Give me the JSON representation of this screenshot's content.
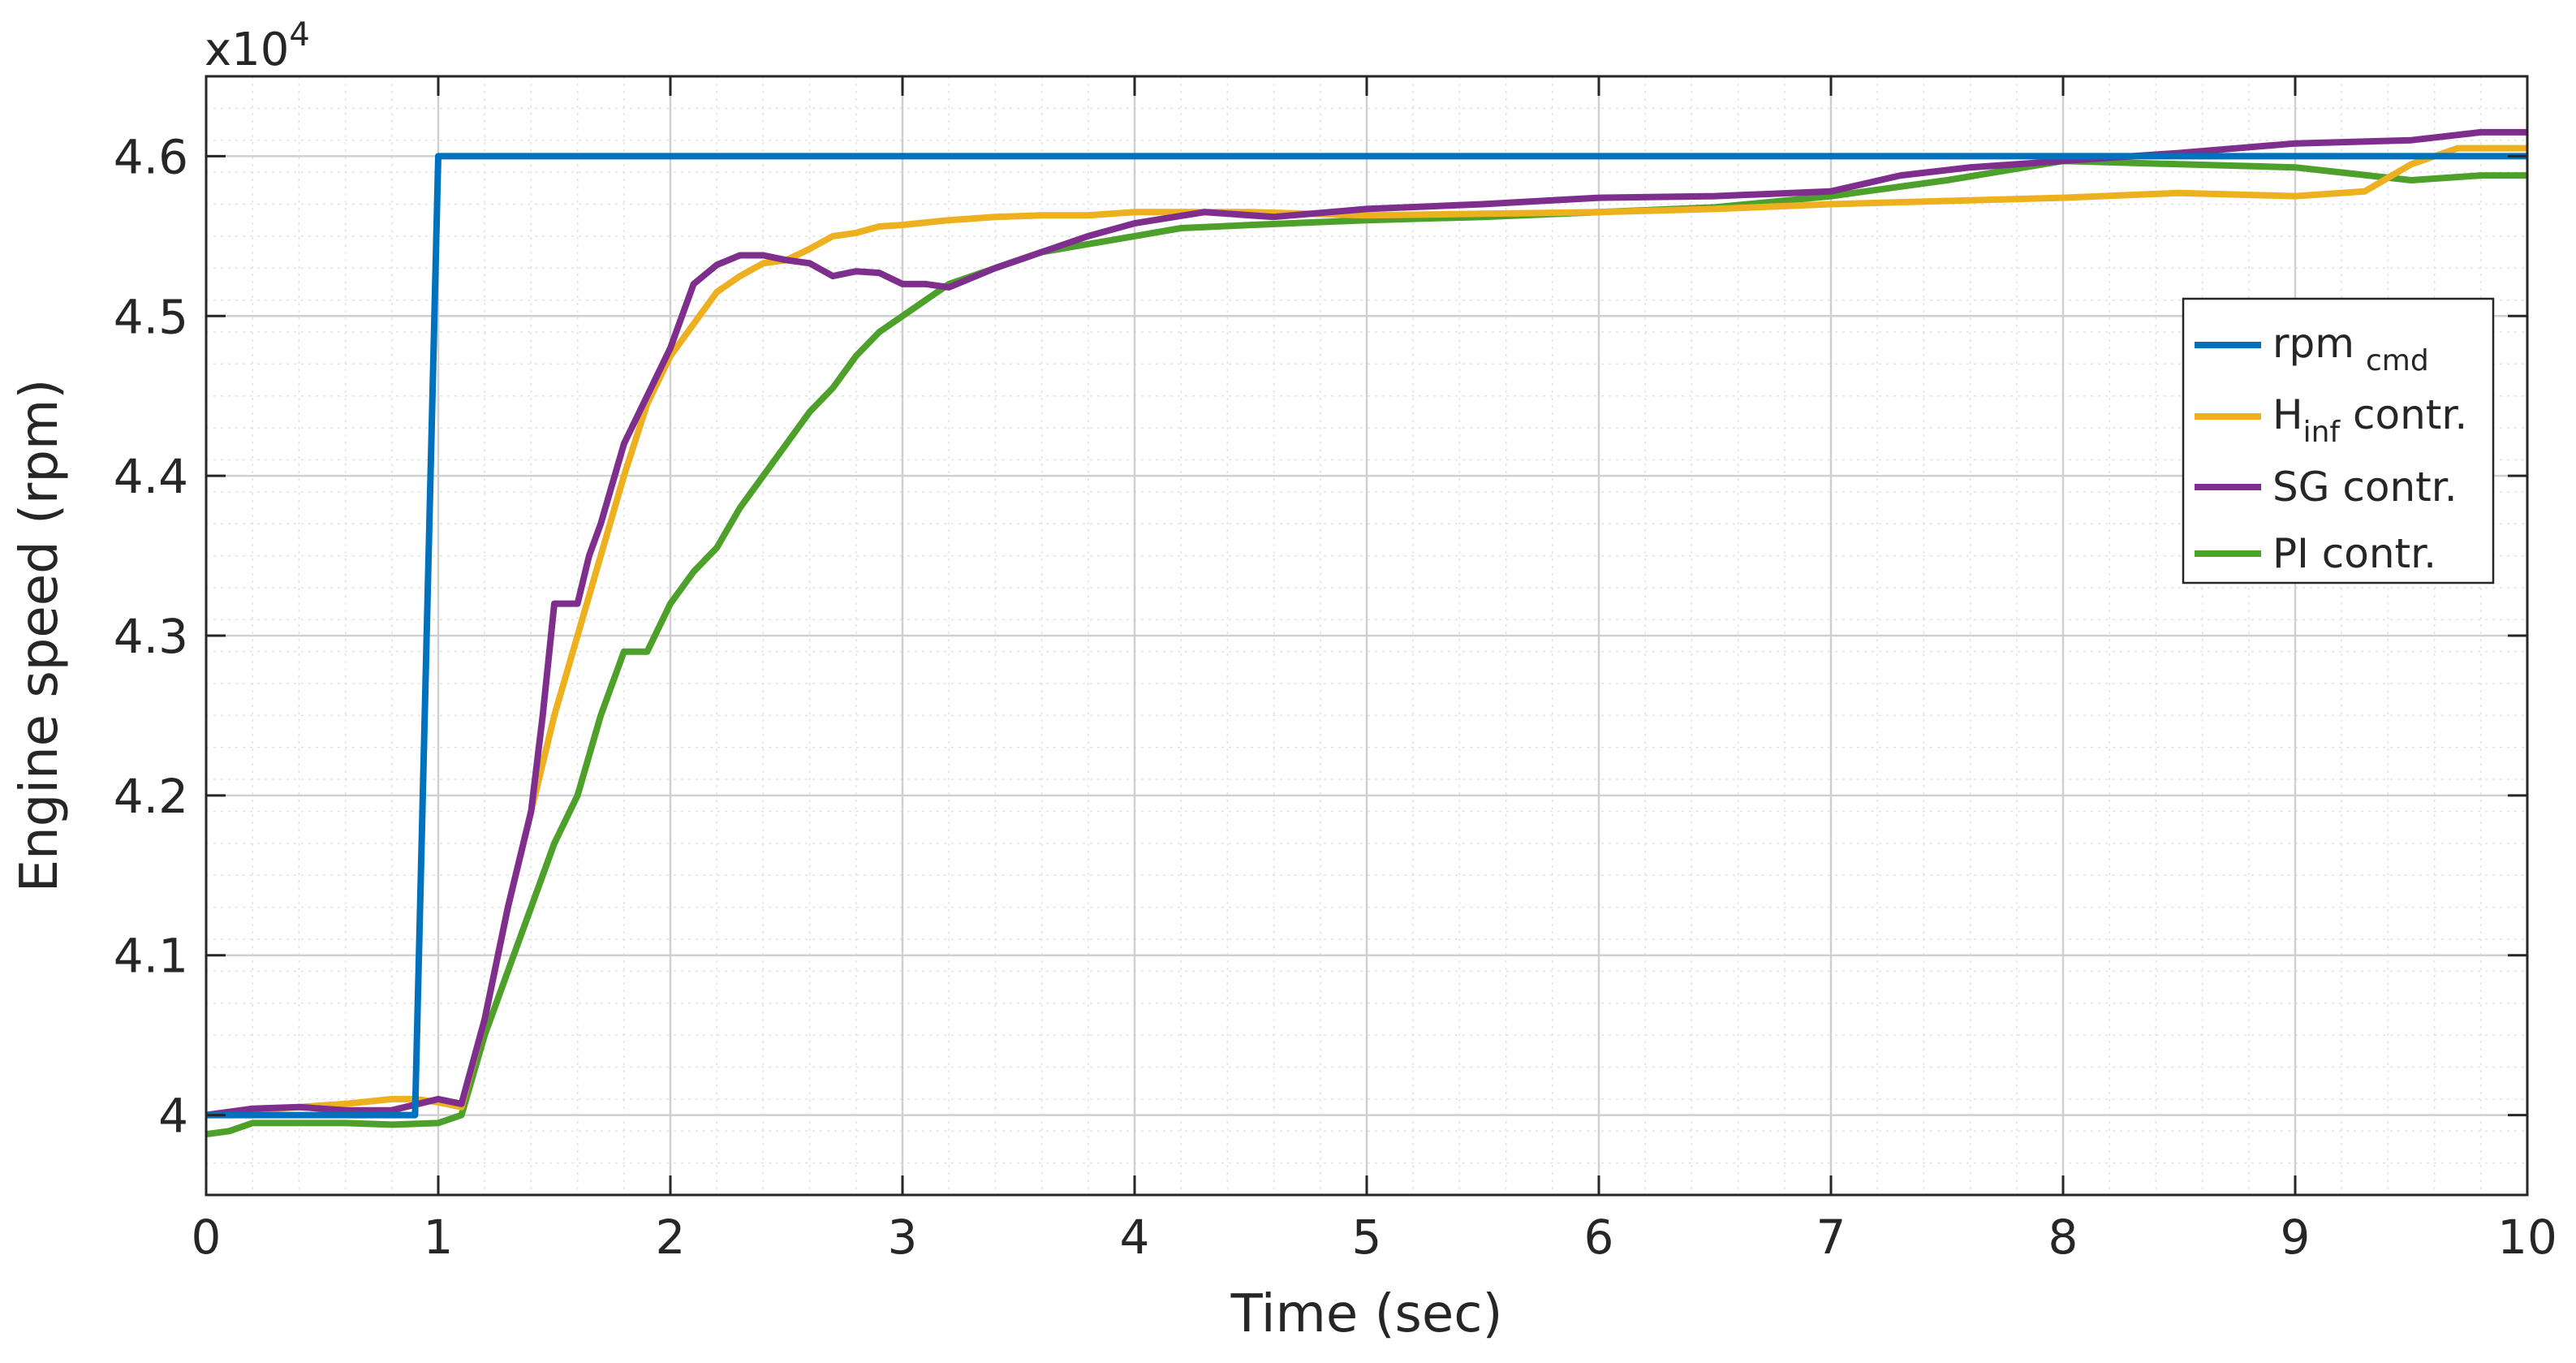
{
  "chart_data": {
    "type": "line",
    "xlabel": "Time (sec)",
    "ylabel": "Engine speed (rpm)",
    "y_multiplier": {
      "base": "x10",
      "exponent": "4"
    },
    "xlim": [
      0,
      10
    ],
    "ylim": [
      3.95,
      4.65
    ],
    "x_ticks": [
      0,
      1,
      2,
      3,
      4,
      5,
      6,
      7,
      8,
      9,
      10
    ],
    "x_tick_labels": [
      "0",
      "1",
      "2",
      "3",
      "4",
      "5",
      "6",
      "7",
      "8",
      "9",
      "10"
    ],
    "y_ticks": [
      4.0,
      4.1,
      4.2,
      4.3,
      4.4,
      4.5,
      4.6
    ],
    "y_tick_labels": [
      "4",
      "4.1",
      "4.2",
      "4.3",
      "4.4",
      "4.5",
      "4.6"
    ],
    "grid": {
      "major": true,
      "minor": true
    },
    "legend": {
      "placement": "right"
    },
    "series": [
      {
        "name": "rpm_cmd",
        "label_main": "rpm",
        "label_sub": "cmd",
        "label_suffix": "",
        "color": "#0072BD",
        "x": [
          0,
          0.9,
          0.9,
          1.0,
          1.0,
          10
        ],
        "y": [
          4.0,
          4.0,
          4.0,
          4.6,
          4.6,
          4.6
        ]
      },
      {
        "name": "H_inf contr.",
        "label_main": "H",
        "label_sub": "inf",
        "label_suffix": " contr.",
        "color": "#EDB120",
        "x": [
          0,
          0.2,
          0.4,
          0.6,
          0.8,
          0.9,
          1.0,
          1.1,
          1.2,
          1.3,
          1.4,
          1.5,
          1.6,
          1.7,
          1.8,
          1.9,
          2.0,
          2.1,
          2.2,
          2.3,
          2.4,
          2.5,
          2.6,
          2.7,
          2.8,
          2.9,
          3.0,
          3.2,
          3.4,
          3.6,
          3.8,
          4.0,
          4.2,
          4.5,
          5.0,
          5.5,
          6.0,
          6.5,
          7.0,
          7.5,
          8.0,
          8.5,
          9.0,
          9.3,
          9.5,
          9.7,
          10
        ],
        "y": [
          4.0,
          4.003,
          4.005,
          4.007,
          4.01,
          4.01,
          4.008,
          4.005,
          4.06,
          4.13,
          4.19,
          4.25,
          4.3,
          4.35,
          4.4,
          4.445,
          4.475,
          4.495,
          4.515,
          4.525,
          4.533,
          4.535,
          4.542,
          4.55,
          4.552,
          4.556,
          4.557,
          4.56,
          4.562,
          4.563,
          4.563,
          4.565,
          4.565,
          4.565,
          4.563,
          4.564,
          4.565,
          4.567,
          4.57,
          4.572,
          4.574,
          4.577,
          4.575,
          4.578,
          4.595,
          4.605,
          4.605
        ]
      },
      {
        "name": "SG contr.",
        "label_main": "SG contr.",
        "label_sub": "",
        "label_suffix": "",
        "color": "#7E2F8E",
        "x": [
          0,
          0.2,
          0.4,
          0.6,
          0.8,
          1.0,
          1.1,
          1.2,
          1.3,
          1.4,
          1.45,
          1.5,
          1.6,
          1.65,
          1.7,
          1.8,
          1.9,
          2.0,
          2.1,
          2.2,
          2.3,
          2.4,
          2.5,
          2.6,
          2.7,
          2.8,
          2.9,
          3.0,
          3.1,
          3.2,
          3.4,
          3.6,
          3.8,
          4.0,
          4.3,
          4.6,
          5.0,
          5.5,
          6.0,
          6.5,
          7.0,
          7.3,
          7.6,
          8.0,
          8.5,
          9.0,
          9.5,
          9.8,
          10
        ],
        "y": [
          4.0,
          4.004,
          4.005,
          4.003,
          4.003,
          4.01,
          4.007,
          4.06,
          4.13,
          4.19,
          4.25,
          4.32,
          4.32,
          4.35,
          4.37,
          4.42,
          4.45,
          4.48,
          4.52,
          4.532,
          4.538,
          4.538,
          4.535,
          4.533,
          4.525,
          4.528,
          4.527,
          4.52,
          4.52,
          4.518,
          4.53,
          4.54,
          4.55,
          4.558,
          4.565,
          4.562,
          4.567,
          4.57,
          4.574,
          4.575,
          4.578,
          4.588,
          4.593,
          4.597,
          4.602,
          4.608,
          4.61,
          4.615,
          4.615
        ]
      },
      {
        "name": "PI contr.",
        "label_main": "PI contr.",
        "label_sub": "",
        "label_suffix": "",
        "color": "#4DA02A",
        "x": [
          0,
          0.1,
          0.2,
          0.4,
          0.6,
          0.8,
          1.0,
          1.1,
          1.2,
          1.3,
          1.4,
          1.5,
          1.6,
          1.7,
          1.8,
          1.9,
          2.0,
          2.1,
          2.2,
          2.3,
          2.4,
          2.5,
          2.6,
          2.7,
          2.8,
          2.9,
          3.0,
          3.2,
          3.4,
          3.6,
          3.8,
          4.0,
          4.2,
          4.5,
          5.0,
          5.5,
          6.0,
          6.5,
          7.0,
          7.5,
          8.0,
          8.5,
          9.0,
          9.5,
          9.8,
          10
        ],
        "y": [
          3.988,
          3.99,
          3.995,
          3.995,
          3.995,
          3.994,
          3.995,
          4.0,
          4.05,
          4.09,
          4.13,
          4.17,
          4.2,
          4.25,
          4.29,
          4.29,
          4.32,
          4.34,
          4.355,
          4.38,
          4.4,
          4.42,
          4.44,
          4.455,
          4.475,
          4.49,
          4.5,
          4.52,
          4.53,
          4.54,
          4.545,
          4.55,
          4.555,
          4.557,
          4.56,
          4.562,
          4.565,
          4.568,
          4.575,
          4.585,
          4.597,
          4.595,
          4.593,
          4.585,
          4.588,
          4.588
        ]
      }
    ]
  }
}
